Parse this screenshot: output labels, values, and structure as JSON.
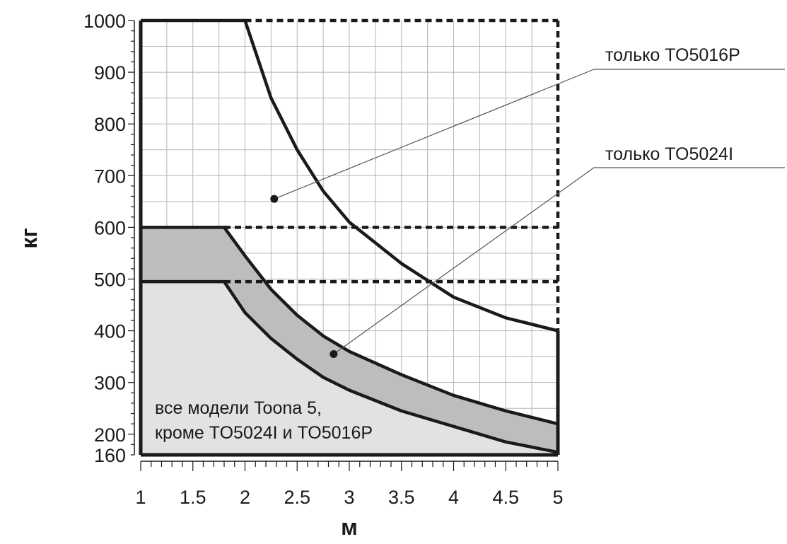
{
  "chart_data": {
    "type": "area",
    "xlabel": "м",
    "ylabel": "кг",
    "xlim": [
      1,
      5
    ],
    "ylim": [
      160,
      1000
    ],
    "xticks": [
      "1",
      "1.5",
      "2",
      "2.5",
      "3",
      "3.5",
      "4",
      "4.5",
      "5"
    ],
    "yticks": [
      "160",
      "200",
      "300",
      "400",
      "500",
      "600",
      "700",
      "800",
      "900",
      "1000"
    ],
    "grid": true,
    "series": [
      {
        "name": "только TO5016P",
        "x": [
          1,
          2,
          2.1,
          2.25,
          2.5,
          2.75,
          3,
          3.5,
          4,
          4.5,
          5
        ],
        "y": [
          1000,
          1000,
          940,
          850,
          750,
          670,
          610,
          530,
          465,
          425,
          400
        ],
        "fill": "#ffffff"
      },
      {
        "name": "только TO5024I",
        "x": [
          1,
          1.8,
          2,
          2.25,
          2.5,
          2.75,
          3,
          3.5,
          4,
          4.5,
          5
        ],
        "y": [
          600,
          600,
          545,
          480,
          430,
          390,
          360,
          315,
          275,
          245,
          220
        ],
        "fill": "#bdbdbd"
      },
      {
        "name": "все модели Toona 5, кроме TO5024I и TO5016P",
        "x": [
          1,
          1.8,
          2,
          2.25,
          2.5,
          2.75,
          3,
          3.5,
          4,
          4.5,
          5
        ],
        "y": [
          495,
          495,
          435,
          385,
          345,
          310,
          285,
          245,
          215,
          185,
          165
        ],
        "fill": "#e2e2e2"
      }
    ],
    "dashed_limits": [
      {
        "from_x": 2,
        "to_x": 5,
        "y": 1000
      },
      {
        "from_x": 1.8,
        "to_x": 5,
        "y": 600
      },
      {
        "from_x": 1.8,
        "to_x": 5,
        "y": 495
      }
    ],
    "annotations": [
      {
        "text": "только TO5016P",
        "point": [
          2.28,
          655
        ]
      },
      {
        "text": "только TO5024I",
        "point": [
          2.85,
          355
        ]
      }
    ],
    "region_label_lines": [
      "все модели Toona 5,",
      "кроме TO5024I и TO5016P"
    ]
  }
}
